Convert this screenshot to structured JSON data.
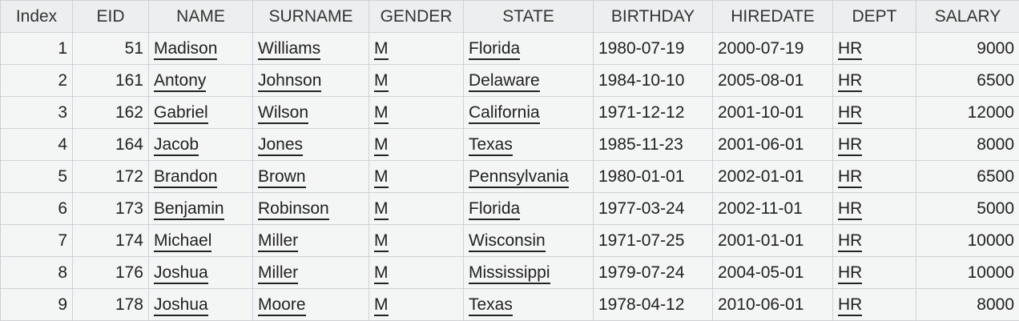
{
  "colors": {
    "header_bg": "#eceeef",
    "cell_bg": "#f4f5f5",
    "grid_line": "#cfd3d6",
    "numeric_blue": "#1a1aff",
    "text": "#222222"
  },
  "table": {
    "columns": [
      "Index",
      "EID",
      "NAME",
      "SURNAME",
      "GENDER",
      "STATE",
      "BIRTHDAY",
      "HIREDATE",
      "DEPT",
      "SALARY"
    ],
    "rows": [
      [
        "1",
        "51",
        "Madison",
        "Williams",
        "M",
        "Florida",
        "1980-07-19",
        "2000-07-19",
        "HR",
        "9000"
      ],
      [
        "2",
        "161",
        "Antony",
        "Johnson",
        "M",
        "Delaware",
        "1984-10-10",
        "2005-08-01",
        "HR",
        "6500"
      ],
      [
        "3",
        "162",
        "Gabriel",
        "Wilson",
        "M",
        "California",
        "1971-12-12",
        "2001-10-01",
        "HR",
        "12000"
      ],
      [
        "4",
        "164",
        "Jacob",
        "Jones",
        "M",
        "Texas",
        "1985-11-23",
        "2001-06-01",
        "HR",
        "8000"
      ],
      [
        "5",
        "172",
        "Brandon",
        "Brown",
        "M",
        "Pennsylvania",
        "1980-01-01",
        "2002-01-01",
        "HR",
        "6500"
      ],
      [
        "6",
        "173",
        "Benjamin",
        "Robinson",
        "M",
        "Florida",
        "1977-03-24",
        "2002-11-01",
        "HR",
        "5000"
      ],
      [
        "7",
        "174",
        "Michael",
        "Miller",
        "M",
        "Wisconsin",
        "1971-07-25",
        "2001-01-01",
        "HR",
        "10000"
      ],
      [
        "8",
        "176",
        "Joshua",
        "Miller",
        "M",
        "Mississippi",
        "1979-07-24",
        "2004-05-01",
        "HR",
        "10000"
      ],
      [
        "9",
        "178",
        "Joshua",
        "Moore",
        "M",
        "Texas",
        "1978-04-12",
        "2010-06-01",
        "HR",
        "8000"
      ]
    ]
  }
}
